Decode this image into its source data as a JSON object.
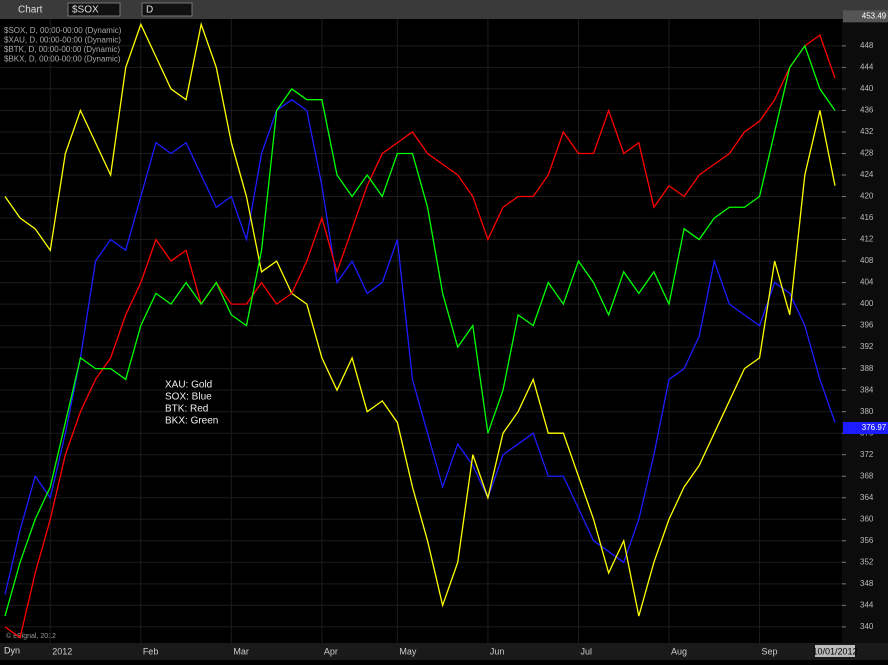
{
  "toolbar": {
    "window": "Chart",
    "symbol": "$SOX",
    "interval": "D"
  },
  "footer": {
    "mode": "Dyn",
    "copyright": "© eSignal, 2012"
  },
  "chart_data": {
    "type": "line",
    "categories": [
      null,
      null,
      null,
      "2012",
      null,
      null,
      null,
      null,
      null,
      "Feb",
      null,
      null,
      null,
      null,
      null,
      "Mar",
      null,
      null,
      null,
      null,
      null,
      "Apr",
      null,
      null,
      null,
      null,
      "May",
      null,
      null,
      null,
      null,
      null,
      "Jun",
      null,
      null,
      null,
      null,
      null,
      "Jul",
      null,
      null,
      null,
      null,
      null,
      "Aug",
      null,
      null,
      null,
      null,
      null,
      "Sep",
      null,
      null,
      null,
      null,
      "10/01/2012"
    ],
    "series": [
      {
        "name": "$SOX, D, 00:00-00:00 (Dynamic)",
        "color": "#1c1cff",
        "values": [
          346,
          358,
          368,
          364,
          376,
          390,
          408,
          412,
          410,
          420,
          430,
          428,
          430,
          424,
          418,
          420,
          412,
          428,
          436,
          438,
          436,
          422,
          404,
          408,
          402,
          404,
          412,
          386,
          376,
          366,
          374,
          370,
          364,
          372,
          374,
          376,
          368,
          368,
          362,
          356,
          354,
          352,
          360,
          372,
          386,
          388,
          394,
          408,
          400,
          398,
          396,
          404,
          402,
          396,
          386,
          378
        ]
      },
      {
        "name": "$XAU, D, 00:00-00:00 (Dynamic)",
        "color": "#ffff00",
        "values": [
          420,
          416,
          414,
          410,
          428,
          436,
          430,
          424,
          444,
          452,
          446,
          440,
          438,
          452,
          444,
          430,
          420,
          406,
          408,
          402,
          400,
          390,
          384,
          390,
          380,
          382,
          378,
          366,
          356,
          344,
          352,
          372,
          364,
          376,
          380,
          386,
          376,
          376,
          368,
          360,
          350,
          356,
          342,
          352,
          360,
          366,
          370,
          376,
          382,
          388,
          390,
          408,
          398,
          424,
          436,
          422
        ]
      },
      {
        "name": "$BTK, D, 00:00-00:00 (Dynamic)",
        "color": "#ff0000",
        "values": [
          340,
          338,
          350,
          360,
          372,
          380,
          386,
          390,
          398,
          404,
          412,
          408,
          410,
          400,
          404,
          400,
          400,
          404,
          400,
          402,
          408,
          416,
          406,
          414,
          422,
          428,
          430,
          432,
          428,
          426,
          424,
          420,
          412,
          418,
          420,
          420,
          424,
          432,
          428,
          428,
          436,
          428,
          430,
          418,
          422,
          420,
          424,
          426,
          428,
          432,
          434,
          438,
          444,
          448,
          450,
          442
        ]
      },
      {
        "name": "$BKX, D, 00:00-00:00 (Dynamic)",
        "color": "#00ff00",
        "values": [
          342,
          352,
          360,
          366,
          378,
          390,
          388,
          388,
          386,
          396,
          402,
          400,
          404,
          400,
          404,
          398,
          396,
          410,
          436,
          440,
          438,
          438,
          424,
          420,
          424,
          420,
          428,
          428,
          418,
          402,
          392,
          396,
          376,
          384,
          398,
          396,
          404,
          400,
          408,
          404,
          398,
          406,
          402,
          406,
          400,
          414,
          412,
          416,
          418,
          418,
          420,
          432,
          444,
          448,
          440,
          436
        ]
      }
    ],
    "annotations": [
      "XAU:  Gold",
      "SOX:  Blue",
      "BTK:  Red",
      "BKX:  Green"
    ],
    "price_tags": [
      {
        "value": 453.49,
        "color": "#555555"
      },
      {
        "value": 376.97,
        "color": "#1c1cff"
      }
    ],
    "ylim": [
      337,
      453
    ],
    "yticks": [
      340,
      344,
      348,
      352,
      356,
      360,
      364,
      368,
      372,
      376,
      380,
      384,
      388,
      392,
      396,
      400,
      404,
      408,
      412,
      416,
      420,
      424,
      428,
      432,
      436,
      440,
      444,
      448
    ],
    "grid": true
  }
}
